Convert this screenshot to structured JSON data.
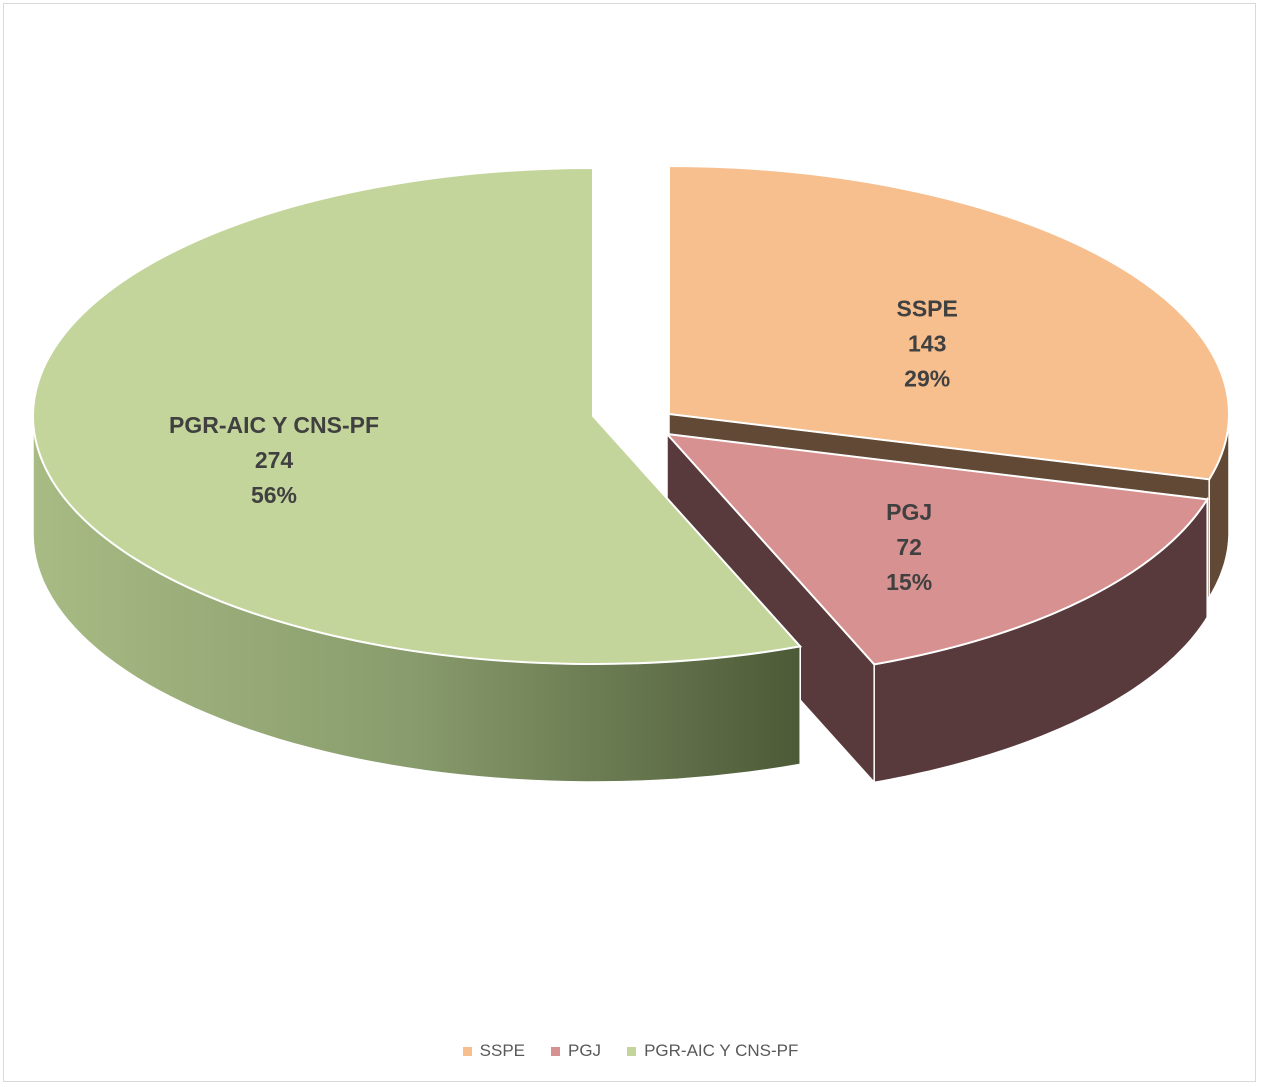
{
  "chart_data": {
    "type": "pie",
    "style": "3d-exploded",
    "legend_position": "bottom",
    "series": [
      {
        "name": "SSPE",
        "value": 143,
        "percent": "29%",
        "color": "#f7be8e",
        "side_color": "#614935"
      },
      {
        "name": "PGJ",
        "value": 72,
        "percent": "15%",
        "color": "#d89191",
        "side_color": "#583a3c"
      },
      {
        "name": "PGR-AIC Y CNS-PF",
        "value": 274,
        "percent": "56%",
        "color": "#c3d59a",
        "side_color": "#8fa072"
      }
    ]
  }
}
